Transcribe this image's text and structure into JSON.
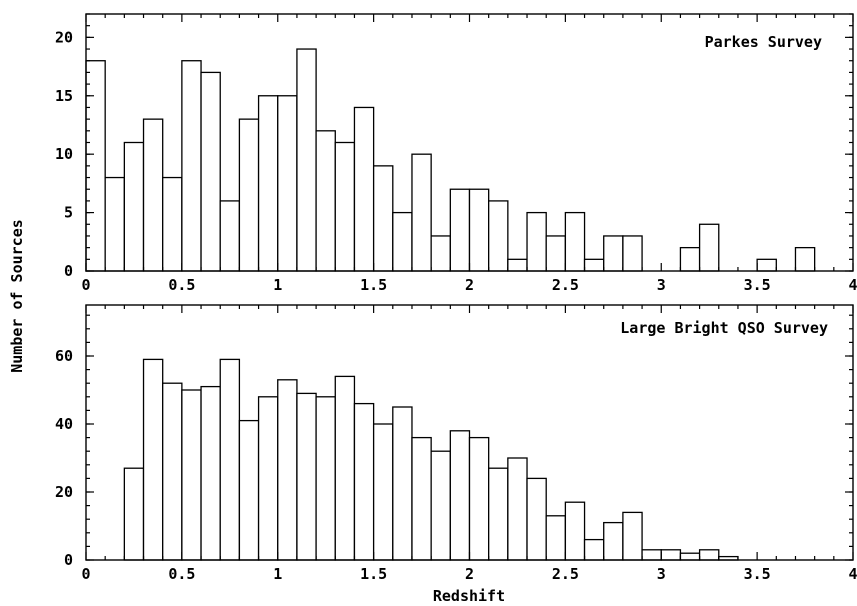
{
  "chart_data": [
    {
      "type": "bar",
      "title": "Parkes Survey",
      "xlabel": "",
      "ylabel": "Number of Sources",
      "xlim": [
        0,
        4
      ],
      "ylim": [
        0,
        22
      ],
      "xticks": [
        0,
        0.5,
        1,
        1.5,
        2,
        2.5,
        3,
        3.5,
        4
      ],
      "xtick_labels": [
        "0",
        "0.5",
        "1",
        "1.5",
        "2",
        "2.5",
        "3",
        "3.5",
        "4"
      ],
      "yticks": [
        0,
        5,
        10,
        15,
        20
      ],
      "ytick_labels": [
        "0",
        "5",
        "10",
        "15",
        "20"
      ],
      "bin_width": 0.1,
      "bin_starts": [
        0.0,
        0.1,
        0.2,
        0.3,
        0.4,
        0.5,
        0.6,
        0.7,
        0.8,
        0.9,
        1.0,
        1.1,
        1.2,
        1.3,
        1.4,
        1.5,
        1.6,
        1.7,
        1.8,
        1.9,
        2.0,
        2.1,
        2.2,
        2.3,
        2.4,
        2.5,
        2.6,
        2.7,
        2.8,
        2.9,
        3.0,
        3.1,
        3.2,
        3.3,
        3.4,
        3.5,
        3.6,
        3.7,
        3.8,
        3.9
      ],
      "values": [
        18,
        8,
        11,
        13,
        8,
        18,
        17,
        6,
        13,
        15,
        15,
        19,
        12,
        11,
        14,
        9,
        5,
        10,
        3,
        7,
        7,
        6,
        1,
        5,
        3,
        5,
        1,
        3,
        3,
        0,
        0,
        2,
        4,
        0,
        0,
        1,
        0,
        2,
        0,
        0
      ]
    },
    {
      "type": "bar",
      "title": "Large Bright QSO Survey",
      "xlabel": "Redshift",
      "ylabel": "Number of Sources",
      "xlim": [
        0,
        4
      ],
      "ylim": [
        0,
        75
      ],
      "xticks": [
        0,
        0.5,
        1,
        1.5,
        2,
        2.5,
        3,
        3.5,
        4
      ],
      "xtick_labels": [
        "0",
        "0.5",
        "1",
        "1.5",
        "2",
        "2.5",
        "3",
        "3.5",
        "4"
      ],
      "yticks": [
        0,
        20,
        40,
        60
      ],
      "ytick_labels": [
        "0",
        "20",
        "40",
        "60"
      ],
      "bin_width": 0.1,
      "bin_starts": [
        0.0,
        0.1,
        0.2,
        0.3,
        0.4,
        0.5,
        0.6,
        0.7,
        0.8,
        0.9,
        1.0,
        1.1,
        1.2,
        1.3,
        1.4,
        1.5,
        1.6,
        1.7,
        1.8,
        1.9,
        2.0,
        2.1,
        2.2,
        2.3,
        2.4,
        2.5,
        2.6,
        2.7,
        2.8,
        2.9,
        3.0,
        3.1,
        3.2,
        3.3,
        3.4,
        3.5,
        3.6,
        3.7,
        3.8,
        3.9
      ],
      "values": [
        0,
        0,
        27,
        59,
        52,
        50,
        51,
        59,
        41,
        48,
        53,
        49,
        48,
        54,
        46,
        40,
        45,
        36,
        32,
        38,
        36,
        27,
        30,
        24,
        13,
        17,
        6,
        11,
        14,
        3,
        3,
        2,
        3,
        1,
        0,
        0,
        0,
        0,
        0,
        0
      ]
    }
  ],
  "figure": {
    "ylabel": "Number of Sources",
    "xlabel": "Redshift",
    "bar_fill": "#ffffff",
    "bar_stroke": "#000000",
    "background": "#ffffff"
  }
}
